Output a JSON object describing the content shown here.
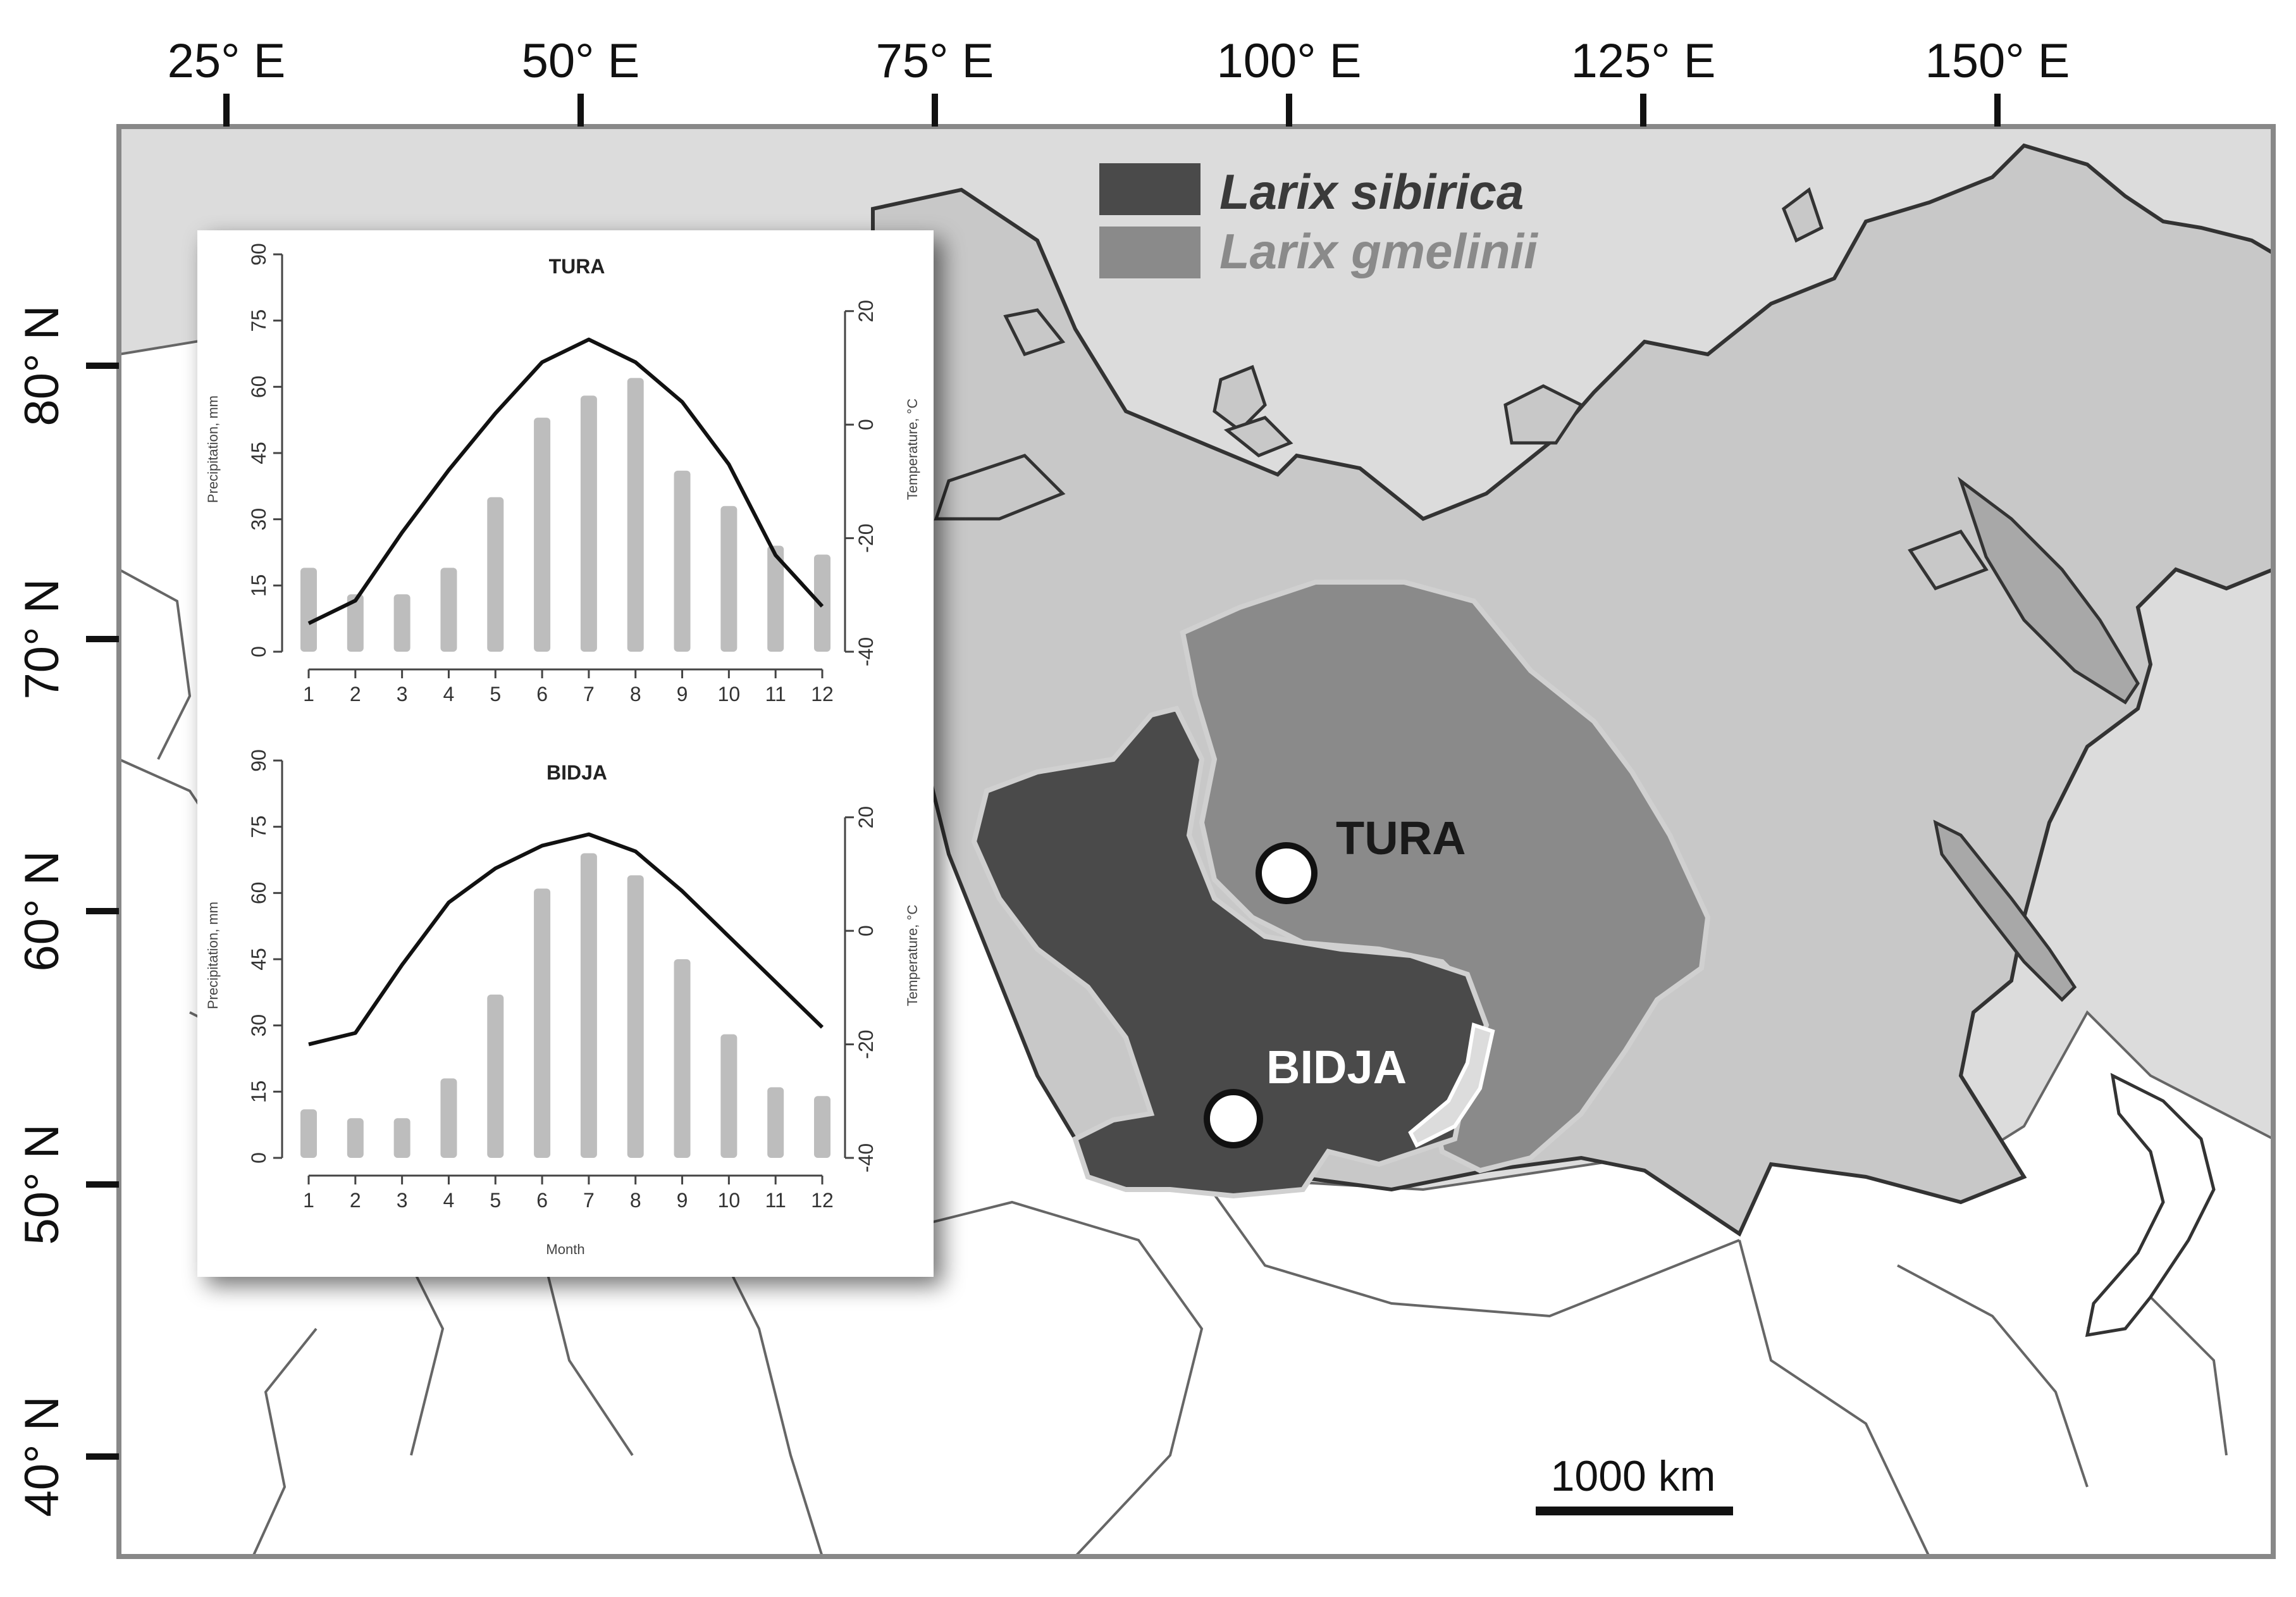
{
  "map": {
    "longitude_labels": [
      "25° E",
      "50° E",
      "75° E",
      "100° E",
      "125° E",
      "150° E"
    ],
    "latitude_labels": [
      "80° N",
      "70° N",
      "60° N",
      "50° N",
      "40° N"
    ],
    "legend": [
      {
        "label": "Larix sibirica",
        "color": "#4a4a4a"
      },
      {
        "label": "Larix gmelinii",
        "color": "#8a8a8a"
      }
    ],
    "sites": [
      {
        "name": "TURA",
        "label_color": "#1a1a1a"
      },
      {
        "name": "BIDJA",
        "label_color": "#ffffff"
      }
    ],
    "scale_bar": "1000 km",
    "colors": {
      "russia": "#c8c8c8",
      "other_land": "#ffffff",
      "sea": "#dcdcdc",
      "larix_sibirica": "#4a4a4a",
      "larix_gmelinii": "#8a8a8a"
    }
  },
  "chart_data": [
    {
      "type": "bar",
      "title": "TURA",
      "categories": [
        "1",
        "2",
        "3",
        "4",
        "5",
        "6",
        "7",
        "8",
        "9",
        "10",
        "11",
        "12"
      ],
      "series": [
        {
          "values": [
            19,
            13,
            13,
            19,
            35,
            53,
            58,
            62,
            41,
            33,
            24,
            22
          ]
        },
        {
          "values": [
            -35,
            -31,
            -19,
            -8,
            2,
            11,
            15,
            11,
            4,
            -7,
            -23,
            -32
          ]
        }
      ],
      "ylabel": "Precipitation, mm",
      "ylabel_right": "Temperature, °C",
      "y_ticks": [
        "0",
        "15",
        "30",
        "45",
        "60",
        "75",
        "90"
      ],
      "y_right_ticks": [
        "-40",
        "-20",
        "0",
        "20"
      ],
      "ylim": [
        0,
        90
      ],
      "ylim_right": [
        -40,
        30
      ]
    },
    {
      "type": "bar",
      "title": "BIDJA",
      "categories": [
        "1",
        "2",
        "3",
        "4",
        "5",
        "6",
        "7",
        "8",
        "9",
        "10",
        "11",
        "12"
      ],
      "series": [
        {
          "values": [
            11,
            9,
            9,
            18,
            37,
            61,
            69,
            64,
            45,
            28,
            16,
            14
          ]
        },
        {
          "values": [
            -20,
            -18,
            -6,
            5,
            11,
            15,
            17,
            14,
            7,
            -1,
            -9,
            -17
          ]
        }
      ],
      "ylabel": "Precipitation, mm",
      "ylabel_right": "Temperature, °C",
      "xlabel": "Month",
      "y_ticks": [
        "0",
        "15",
        "30",
        "45",
        "60",
        "75",
        "90"
      ],
      "y_right_ticks": [
        "-40",
        "-20",
        "0",
        "20"
      ],
      "ylim": [
        0,
        90
      ],
      "ylim_right": [
        -40,
        30
      ]
    }
  ]
}
